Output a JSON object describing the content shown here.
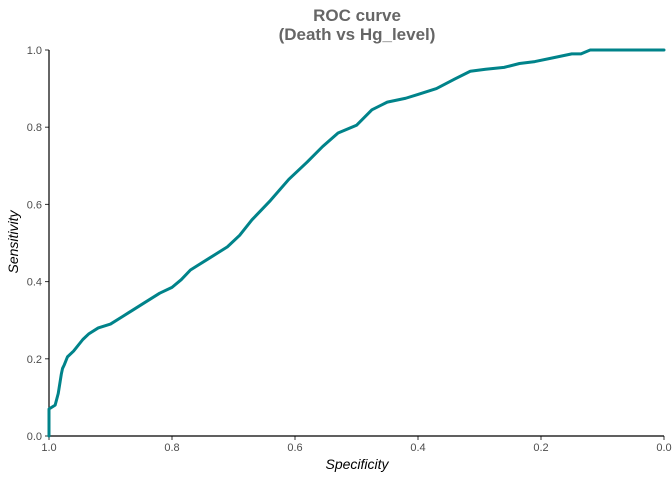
{
  "chart_data": {
    "type": "line",
    "title_line1": "ROC curve",
    "title_line2": "(Death vs Hg_level)",
    "xlabel": "Specificity",
    "ylabel": "Sensitivity",
    "xlim": [
      1.0,
      0.0
    ],
    "ylim": [
      0.0,
      1.0
    ],
    "x_ticks": [
      "1.0",
      "0.8",
      "0.6",
      "0.4",
      "0.2",
      "0.0"
    ],
    "y_ticks": [
      "0.0",
      "0.2",
      "0.4",
      "0.6",
      "0.8",
      "1.0"
    ],
    "grid": false,
    "line_color": "#00838a",
    "series": [
      {
        "specificity": [
          1.0,
          1.0,
          1.0,
          0.99,
          0.985,
          0.98,
          0.978,
          0.975,
          0.97,
          0.96,
          0.945,
          0.935,
          0.92,
          0.9,
          0.88,
          0.865,
          0.845,
          0.82,
          0.8,
          0.785,
          0.77,
          0.76,
          0.74,
          0.71,
          0.69,
          0.67,
          0.64,
          0.61,
          0.58,
          0.555,
          0.53,
          0.5,
          0.475,
          0.45,
          0.42,
          0.4,
          0.37,
          0.34,
          0.315,
          0.29,
          0.26,
          0.235,
          0.21,
          0.18,
          0.15,
          0.135,
          0.12,
          0.1,
          0.05,
          0.0
        ],
        "sensitivity": [
          0.0,
          0.06,
          0.07,
          0.08,
          0.11,
          0.16,
          0.175,
          0.185,
          0.205,
          0.22,
          0.25,
          0.265,
          0.28,
          0.29,
          0.31,
          0.325,
          0.345,
          0.37,
          0.385,
          0.405,
          0.43,
          0.44,
          0.46,
          0.49,
          0.52,
          0.56,
          0.61,
          0.665,
          0.71,
          0.75,
          0.785,
          0.805,
          0.845,
          0.865,
          0.875,
          0.885,
          0.9,
          0.925,
          0.945,
          0.95,
          0.955,
          0.965,
          0.97,
          0.98,
          0.99,
          0.99,
          1.0,
          1.0,
          1.0,
          1.0
        ]
      }
    ]
  }
}
